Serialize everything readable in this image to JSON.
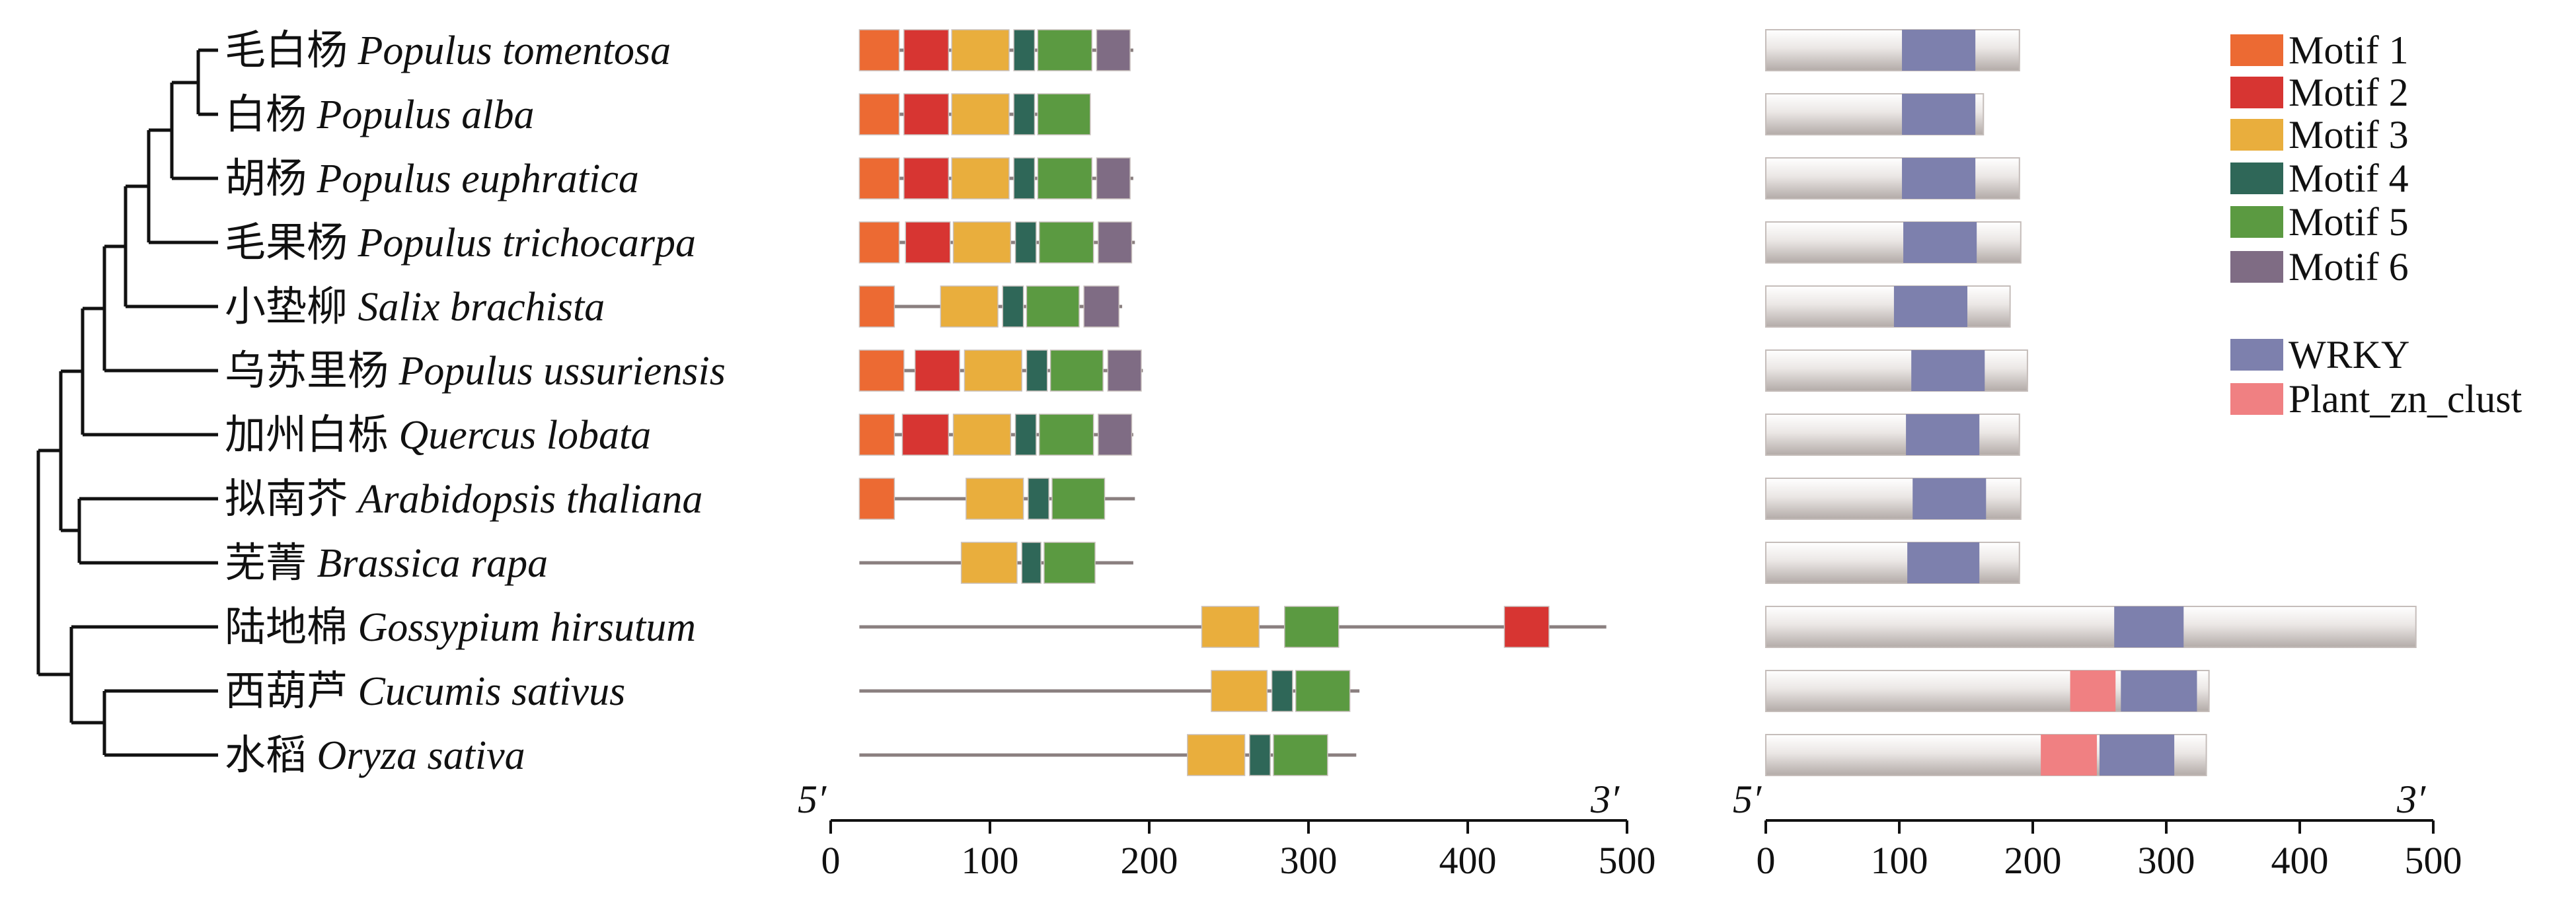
{
  "species": [
    {
      "cn": "毛白杨",
      "latin": "Populus tomentosa"
    },
    {
      "cn": "白杨",
      "latin": "Populus alba"
    },
    {
      "cn": "胡杨",
      "latin": "Populus euphratica"
    },
    {
      "cn": "毛果杨",
      "latin": "Populus trichocarpa"
    },
    {
      "cn": "小垫柳",
      "latin": "Salix brachista"
    },
    {
      "cn": "乌苏里杨",
      "latin": "Populus ussuriensis"
    },
    {
      "cn": "加州白栎",
      "latin": "Quercus lobata"
    },
    {
      "cn": "拟南芥",
      "latin": "Arabidopsis thaliana"
    },
    {
      "cn": "芜菁",
      "latin": "Brassica rapa"
    },
    {
      "cn": "陆地棉",
      "latin": "Gossypium hirsutum"
    },
    {
      "cn": "西葫芦",
      "latin": "Cucumis sativus"
    },
    {
      "cn": "水稻",
      "latin": "Oryza sativa"
    }
  ],
  "colors": {
    "motif1": "#ec6a33",
    "motif2": "#d73532",
    "motif3": "#e9ae3d",
    "motif4": "#2f6758",
    "motif5": "#5b9a41",
    "motif6": "#7f6c84",
    "WRKY": "#7d80ad",
    "Plant_zn_clust": "#f08082",
    "line": "#8a7f7f"
  },
  "legend": [
    {
      "key": "motif1",
      "label": "Motif 1"
    },
    {
      "key": "motif2",
      "label": "Motif 2"
    },
    {
      "key": "motif3",
      "label": "Motif 3"
    },
    {
      "key": "motif4",
      "label": "Motif 4"
    },
    {
      "key": "motif5",
      "label": "Motif 5"
    },
    {
      "key": "motif6",
      "label": "Motif 6"
    },
    {
      "key": "WRKY",
      "label": "WRKY"
    },
    {
      "key": "Plant_zn_clust",
      "label": "Plant_zn_clust"
    }
  ],
  "motif_panel": {
    "axis_ticks": [
      0,
      100,
      200,
      300,
      400,
      500
    ],
    "xlim": [
      0,
      500
    ],
    "start_label": "5′",
    "end_label": "3′",
    "rows": [
      {
        "length": 190,
        "motifs": [
          {
            "m": "motif1",
            "s": 18,
            "e": 43
          },
          {
            "m": "motif2",
            "s": 46,
            "e": 74
          },
          {
            "m": "motif3",
            "s": 76,
            "e": 112
          },
          {
            "m": "motif4",
            "s": 115,
            "e": 128
          },
          {
            "m": "motif5",
            "s": 130,
            "e": 164
          },
          {
            "m": "motif6",
            "s": 167,
            "e": 188
          }
        ]
      },
      {
        "length": 163,
        "motifs": [
          {
            "m": "motif1",
            "s": 18,
            "e": 43
          },
          {
            "m": "motif2",
            "s": 46,
            "e": 74
          },
          {
            "m": "motif3",
            "s": 76,
            "e": 112
          },
          {
            "m": "motif4",
            "s": 115,
            "e": 128
          },
          {
            "m": "motif5",
            "s": 130,
            "e": 163
          }
        ]
      },
      {
        "length": 190,
        "motifs": [
          {
            "m": "motif1",
            "s": 18,
            "e": 43
          },
          {
            "m": "motif2",
            "s": 46,
            "e": 74
          },
          {
            "m": "motif3",
            "s": 76,
            "e": 112
          },
          {
            "m": "motif4",
            "s": 115,
            "e": 128
          },
          {
            "m": "motif5",
            "s": 130,
            "e": 164
          },
          {
            "m": "motif6",
            "s": 167,
            "e": 188
          }
        ]
      },
      {
        "length": 191,
        "motifs": [
          {
            "m": "motif1",
            "s": 18,
            "e": 43
          },
          {
            "m": "motif2",
            "s": 47,
            "e": 75
          },
          {
            "m": "motif3",
            "s": 77,
            "e": 113
          },
          {
            "m": "motif4",
            "s": 116,
            "e": 129
          },
          {
            "m": "motif5",
            "s": 131,
            "e": 165
          },
          {
            "m": "motif6",
            "s": 168,
            "e": 189
          }
        ]
      },
      {
        "length": 183,
        "motifs": [
          {
            "m": "motif1",
            "s": 18,
            "e": 40
          },
          {
            "m": "motif3",
            "s": 69,
            "e": 105
          },
          {
            "m": "motif4",
            "s": 108,
            "e": 121
          },
          {
            "m": "motif5",
            "s": 123,
            "e": 156
          },
          {
            "m": "motif6",
            "s": 159,
            "e": 181
          }
        ]
      },
      {
        "length": 196,
        "motifs": [
          {
            "m": "motif1",
            "s": 18,
            "e": 46
          },
          {
            "m": "motif2",
            "s": 53,
            "e": 81
          },
          {
            "m": "motif3",
            "s": 84,
            "e": 120
          },
          {
            "m": "motif4",
            "s": 123,
            "e": 136
          },
          {
            "m": "motif5",
            "s": 138,
            "e": 171
          },
          {
            "m": "motif6",
            "s": 174,
            "e": 195
          }
        ]
      },
      {
        "length": 190,
        "motifs": [
          {
            "m": "motif1",
            "s": 18,
            "e": 40
          },
          {
            "m": "motif2",
            "s": 45,
            "e": 74
          },
          {
            "m": "motif3",
            "s": 77,
            "e": 113
          },
          {
            "m": "motif4",
            "s": 116,
            "e": 129
          },
          {
            "m": "motif5",
            "s": 131,
            "e": 165
          },
          {
            "m": "motif6",
            "s": 168,
            "e": 189
          }
        ]
      },
      {
        "length": 191,
        "motifs": [
          {
            "m": "motif1",
            "s": 18,
            "e": 40
          },
          {
            "m": "motif3",
            "s": 85,
            "e": 121
          },
          {
            "m": "motif4",
            "s": 124,
            "e": 137
          },
          {
            "m": "motif5",
            "s": 139,
            "e": 172
          }
        ]
      },
      {
        "length": 190,
        "motifs": [
          {
            "m": "motif3",
            "s": 82,
            "e": 117
          },
          {
            "m": "motif4",
            "s": 120,
            "e": 132
          },
          {
            "m": "motif5",
            "s": 134,
            "e": 166
          }
        ]
      },
      {
        "length": 487,
        "motifs": [
          {
            "m": "motif3",
            "s": 233,
            "e": 269
          },
          {
            "m": "motif5",
            "s": 285,
            "e": 319
          },
          {
            "m": "motif2",
            "s": 423,
            "e": 451
          }
        ]
      },
      {
        "length": 332,
        "motifs": [
          {
            "m": "motif3",
            "s": 239,
            "e": 274
          },
          {
            "m": "motif4",
            "s": 277,
            "e": 290
          },
          {
            "m": "motif5",
            "s": 292,
            "e": 326
          }
        ]
      },
      {
        "length": 330,
        "motifs": [
          {
            "m": "motif3",
            "s": 224,
            "e": 260
          },
          {
            "m": "motif4",
            "s": 263,
            "e": 276
          },
          {
            "m": "motif5",
            "s": 278,
            "e": 312
          }
        ]
      }
    ]
  },
  "domain_panel": {
    "axis_ticks": [
      0,
      100,
      200,
      300,
      400,
      500
    ],
    "xlim": [
      0,
      500
    ],
    "start_label": "5′",
    "end_label": "3′",
    "rows": [
      {
        "length": 190,
        "domains": [
          {
            "d": "WRKY",
            "s": 102,
            "e": 157
          }
        ]
      },
      {
        "length": 163,
        "domains": [
          {
            "d": "WRKY",
            "s": 102,
            "e": 157
          }
        ]
      },
      {
        "length": 190,
        "domains": [
          {
            "d": "WRKY",
            "s": 102,
            "e": 157
          }
        ]
      },
      {
        "length": 191,
        "domains": [
          {
            "d": "WRKY",
            "s": 103,
            "e": 158
          }
        ]
      },
      {
        "length": 183,
        "domains": [
          {
            "d": "WRKY",
            "s": 96,
            "e": 151
          }
        ]
      },
      {
        "length": 196,
        "domains": [
          {
            "d": "WRKY",
            "s": 109,
            "e": 164
          }
        ]
      },
      {
        "length": 190,
        "domains": [
          {
            "d": "WRKY",
            "s": 105,
            "e": 160
          }
        ]
      },
      {
        "length": 191,
        "domains": [
          {
            "d": "WRKY",
            "s": 110,
            "e": 165
          }
        ]
      },
      {
        "length": 190,
        "domains": [
          {
            "d": "WRKY",
            "s": 106,
            "e": 160
          }
        ]
      },
      {
        "length": 487,
        "domains": [
          {
            "d": "WRKY",
            "s": 261,
            "e": 313
          }
        ]
      },
      {
        "length": 332,
        "domains": [
          {
            "d": "Plant_zn_clust",
            "s": 228,
            "e": 262
          },
          {
            "d": "WRKY",
            "s": 266,
            "e": 323
          }
        ]
      },
      {
        "length": 330,
        "domains": [
          {
            "d": "Plant_zn_clust",
            "s": 206,
            "e": 248
          },
          {
            "d": "WRKY",
            "s": 250,
            "e": 306
          }
        ]
      }
    ]
  }
}
